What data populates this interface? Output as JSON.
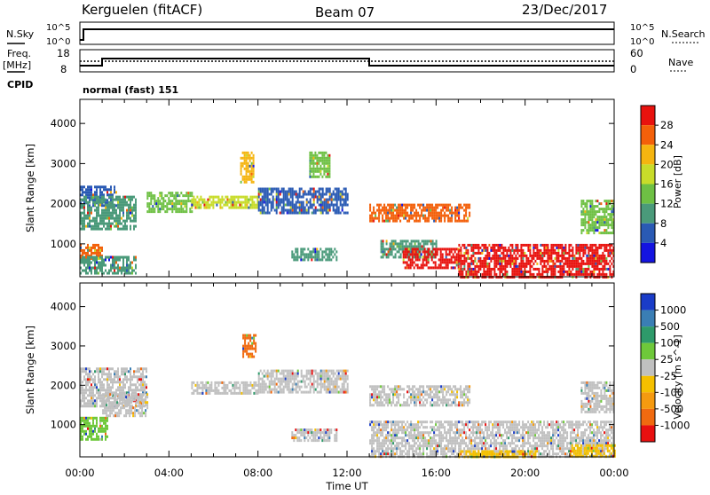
{
  "header": {
    "station": "Kerguelen (fitACF)",
    "beam": "Beam 07",
    "date": "23/Dec/2017"
  },
  "noise_panel": {
    "left_label": "N.Sky",
    "right_label": "N.Search",
    "left_ticks": [
      "10^5",
      "10^0"
    ],
    "right_ticks": [
      "10^5",
      "10^0"
    ]
  },
  "freq_panel": {
    "left_label_line1": "Freq.",
    "left_label_line2": "[MHz]",
    "right_label": "Nave",
    "left_ticks": [
      "18",
      "8"
    ],
    "right_ticks": [
      "60",
      "0"
    ],
    "freq_values": {
      "x_hours": [
        0,
        1,
        1,
        13,
        13,
        24
      ],
      "mhz": [
        10,
        10,
        12,
        12,
        10,
        10
      ]
    }
  },
  "cpid": {
    "label": "CPID",
    "mode": "normal (fast) 151"
  },
  "time_axis": {
    "label": "Time UT",
    "ticks": [
      "00:00",
      "04:00",
      "08:00",
      "12:00",
      "16:00",
      "20:00",
      "00:00"
    ]
  },
  "chart_data": [
    {
      "type": "heatmap",
      "title": "Power",
      "ylabel": "Slant Range [km]",
      "xlabel": "Time UT",
      "x_range_hours": [
        0,
        24
      ],
      "ylim": [
        180,
        4600
      ],
      "y_ticks": [
        "1000",
        "2000",
        "3000",
        "4000"
      ],
      "colorbar_label": "Power [dB]",
      "colorbar_ticks": [
        "28",
        "24",
        "20",
        "16",
        "12",
        "8",
        "4"
      ],
      "colors": [
        "#e8120e",
        "#f3600a",
        "#f5b510",
        "#c8dc2a",
        "#6ec044",
        "#4a9a7a",
        "#2a5ab4",
        "#1414e0"
      ],
      "regions": [
        {
          "t": [
            0.0,
            1.6
          ],
          "r": [
            1950,
            2450
          ],
          "color": "#2a5ab4"
        },
        {
          "t": [
            0.0,
            2.5
          ],
          "r": [
            1400,
            2200
          ],
          "color": "#4a9a7a"
        },
        {
          "t": [
            0.0,
            1.0
          ],
          "r": [
            650,
            1000
          ],
          "color": "#f3600a"
        },
        {
          "t": [
            0.0,
            2.5
          ],
          "r": [
            300,
            700
          ],
          "color": "#4a9a7a"
        },
        {
          "t": [
            3.0,
            5.0
          ],
          "r": [
            1800,
            2300
          ],
          "color": "#6ec044"
        },
        {
          "t": [
            5.0,
            8.0
          ],
          "r": [
            1900,
            2200
          ],
          "color": "#c8dc2a"
        },
        {
          "t": [
            7.2,
            7.8
          ],
          "r": [
            2550,
            3300
          ],
          "color": "#f5b510"
        },
        {
          "t": [
            8.0,
            12.0
          ],
          "r": [
            1800,
            2400
          ],
          "color": "#2a5ab4"
        },
        {
          "t": [
            9.5,
            11.5
          ],
          "r": [
            600,
            900
          ],
          "color": "#4a9a7a"
        },
        {
          "t": [
            10.3,
            11.2
          ],
          "r": [
            2700,
            3300
          ],
          "color": "#6ec044"
        },
        {
          "t": [
            13.0,
            17.5
          ],
          "r": [
            1600,
            2000
          ],
          "color": "#f3600a"
        },
        {
          "t": [
            13.5,
            16.0
          ],
          "r": [
            700,
            1100
          ],
          "color": "#4a9a7a"
        },
        {
          "t": [
            14.5,
            17.0
          ],
          "r": [
            400,
            900
          ],
          "color": "#e8120e"
        },
        {
          "t": [
            17.0,
            24.0
          ],
          "r": [
            180,
            1000
          ],
          "color": "#e8120e"
        },
        {
          "t": [
            22.5,
            24.0
          ],
          "r": [
            1300,
            2100
          ],
          "color": "#6ec044"
        }
      ]
    },
    {
      "type": "heatmap",
      "title": "Velocity",
      "ylabel": "Slant Range [km]",
      "xlabel": "Time UT",
      "x_range_hours": [
        0,
        24
      ],
      "ylim": [
        180,
        4600
      ],
      "y_ticks": [
        "1000",
        "2000",
        "3000",
        "4000"
      ],
      "colorbar_label": "Velocity [m s^-1]",
      "colorbar_ticks": [
        "1000",
        "500",
        "100",
        "25",
        "-25",
        "-100",
        "-500",
        "-1000"
      ],
      "colors": [
        "#1a3cc8",
        "#3a7eb4",
        "#2e9a6a",
        "#6ec83a",
        "#c0c0c0",
        "#f5c000",
        "#f59a10",
        "#f06a10",
        "#e81010"
      ],
      "regions": [
        {
          "t": [
            0.0,
            3.0
          ],
          "r": [
            1500,
            2450
          ],
          "color": "#c0c0c0"
        },
        {
          "t": [
            0.0,
            1.2
          ],
          "r": [
            600,
            1200
          ],
          "color": "#6ec83a"
        },
        {
          "t": [
            1.0,
            3.0
          ],
          "r": [
            1200,
            1800
          ],
          "color": "#c0c0c0"
        },
        {
          "t": [
            5.0,
            8.0
          ],
          "r": [
            1800,
            2100
          ],
          "color": "#c0c0c0"
        },
        {
          "t": [
            7.3,
            7.9
          ],
          "r": [
            2700,
            3300
          ],
          "color": "#f06a10"
        },
        {
          "t": [
            8.0,
            12.0
          ],
          "r": [
            1800,
            2400
          ],
          "color": "#c0c0c0"
        },
        {
          "t": [
            9.5,
            11.5
          ],
          "r": [
            600,
            900
          ],
          "color": "#c0c0c0"
        },
        {
          "t": [
            13.0,
            17.5
          ],
          "r": [
            1500,
            2000
          ],
          "color": "#c0c0c0"
        },
        {
          "t": [
            13.0,
            24.0
          ],
          "r": [
            180,
            1100
          ],
          "color": "#c0c0c0"
        },
        {
          "t": [
            17.0,
            20.5
          ],
          "r": [
            180,
            350
          ],
          "color": "#f5c000"
        },
        {
          "t": [
            22.0,
            24.0
          ],
          "r": [
            180,
            500
          ],
          "color": "#f5c000"
        },
        {
          "t": [
            22.5,
            24.0
          ],
          "r": [
            1300,
            2100
          ],
          "color": "#c0c0c0"
        }
      ]
    }
  ]
}
